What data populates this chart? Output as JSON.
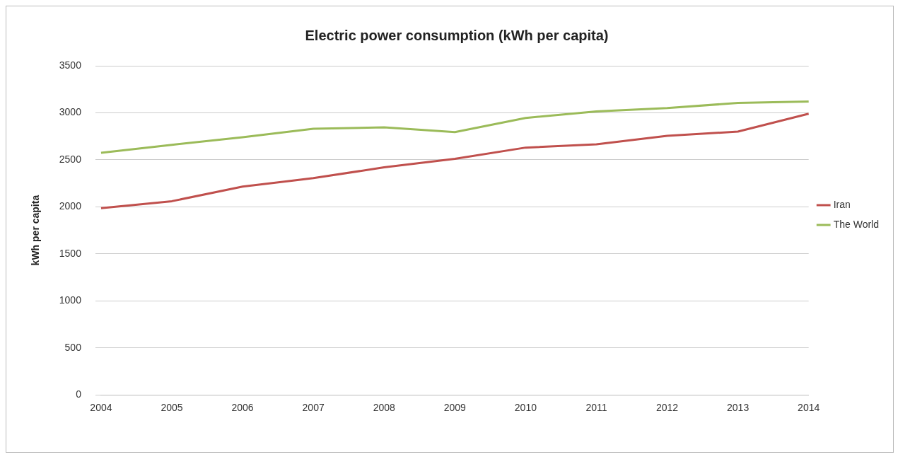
{
  "chart_data": {
    "type": "line",
    "title": "Electric power consumption (kWh per capita)",
    "ylabel": "kWh per capita",
    "categories": [
      "2004",
      "2005",
      "2006",
      "2007",
      "2008",
      "2009",
      "2010",
      "2011",
      "2012",
      "2013",
      "2014"
    ],
    "series": [
      {
        "name": "Iran",
        "color": "#c0504d",
        "values": [
          1985,
          2060,
          2215,
          2305,
          2420,
          2510,
          2630,
          2665,
          2755,
          2800,
          2990
        ]
      },
      {
        "name": "The World",
        "color": "#9bbb59",
        "values": [
          2575,
          2660,
          2740,
          2830,
          2845,
          2795,
          2945,
          3015,
          3050,
          3105,
          3120
        ]
      }
    ],
    "ylim": [
      0,
      3500
    ],
    "yticks": [
      0,
      500,
      1000,
      1500,
      2000,
      2500,
      3000,
      3500
    ],
    "grid": "y",
    "legend": "right",
    "marker": "none"
  }
}
